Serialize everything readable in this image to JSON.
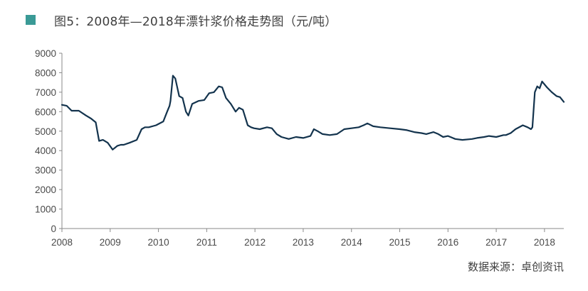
{
  "title": "图5：2008年—2018年漂针浆价格走势图（元/吨）",
  "source": "数据来源：卓创资讯",
  "colors": {
    "marker": "#3a9a96",
    "line": "#13334d",
    "axis": "#8a8a8a"
  },
  "chart_data": {
    "type": "line",
    "title": "图5：2008年—2018年漂针浆价格走势图（元/吨）",
    "xlabel": "",
    "ylabel": "",
    "ylim": [
      0,
      9000
    ],
    "yticks": [
      0,
      1000,
      2000,
      3000,
      4000,
      5000,
      6000,
      7000,
      8000,
      9000
    ],
    "xlim": [
      2008.0,
      2018.4
    ],
    "xticks": [
      "2008",
      "2009",
      "2010",
      "2011",
      "2012",
      "2013",
      "2014",
      "2015",
      "2016",
      "2017",
      "2018"
    ],
    "grid": false,
    "series": [
      {
        "x": [
          2008.0,
          2008.1,
          2008.2,
          2008.35,
          2008.5,
          2008.6,
          2008.7,
          2008.77,
          2008.85,
          2008.95,
          2009.05,
          2009.15,
          2009.22,
          2009.28,
          2009.4,
          2009.55,
          2009.65,
          2009.72,
          2009.8,
          2009.95,
          2010.1,
          2010.18,
          2010.23,
          2010.25,
          2010.3,
          2010.35,
          2010.43,
          2010.5,
          2010.57,
          2010.62,
          2010.7,
          2010.83,
          2010.95,
          2011.05,
          2011.15,
          2011.25,
          2011.32,
          2011.4,
          2011.5,
          2011.6,
          2011.67,
          2011.75,
          2011.85,
          2011.92,
          2011.98,
          2012.1,
          2012.25,
          2012.35,
          2012.45,
          2012.55,
          2012.7,
          2012.85,
          2013.0,
          2013.15,
          2013.22,
          2013.3,
          2013.4,
          2013.55,
          2013.7,
          2013.85,
          2014.0,
          2014.15,
          2014.25,
          2014.33,
          2014.45,
          2014.6,
          2014.8,
          2015.0,
          2015.15,
          2015.3,
          2015.45,
          2015.55,
          2015.7,
          2015.8,
          2015.9,
          2016.0,
          2016.15,
          2016.3,
          2016.5,
          2016.6,
          2016.75,
          2016.85,
          2017.0,
          2017.15,
          2017.2,
          2017.3,
          2017.4,
          2017.55,
          2017.65,
          2017.72,
          2017.75,
          2017.8,
          2017.85,
          2017.9,
          2017.95,
          2018.05,
          2018.15,
          2018.25,
          2018.32,
          2018.4
        ],
        "values": [
          6350,
          6300,
          6050,
          6050,
          5800,
          5650,
          5450,
          4500,
          4550,
          4400,
          4050,
          4250,
          4300,
          4300,
          4400,
          4550,
          5100,
          5200,
          5200,
          5300,
          5500,
          6000,
          6300,
          6550,
          7850,
          7700,
          6800,
          6700,
          6000,
          5800,
          6400,
          6550,
          6600,
          6950,
          7000,
          7300,
          7250,
          6700,
          6400,
          6000,
          6200,
          6100,
          5300,
          5200,
          5150,
          5100,
          5200,
          5150,
          4850,
          4700,
          4600,
          4700,
          4650,
          4750,
          5100,
          5000,
          4850,
          4800,
          4850,
          5100,
          5150,
          5200,
          5300,
          5400,
          5250,
          5200,
          5150,
          5100,
          5050,
          4950,
          4900,
          4850,
          4950,
          4850,
          4700,
          4750,
          4600,
          4550,
          4600,
          4650,
          4700,
          4750,
          4700,
          4800,
          4800,
          4900,
          5100,
          5300,
          5200,
          5100,
          5200,
          7000,
          7300,
          7200,
          7550,
          7250,
          7000,
          6800,
          6750,
          6500
        ]
      }
    ]
  }
}
